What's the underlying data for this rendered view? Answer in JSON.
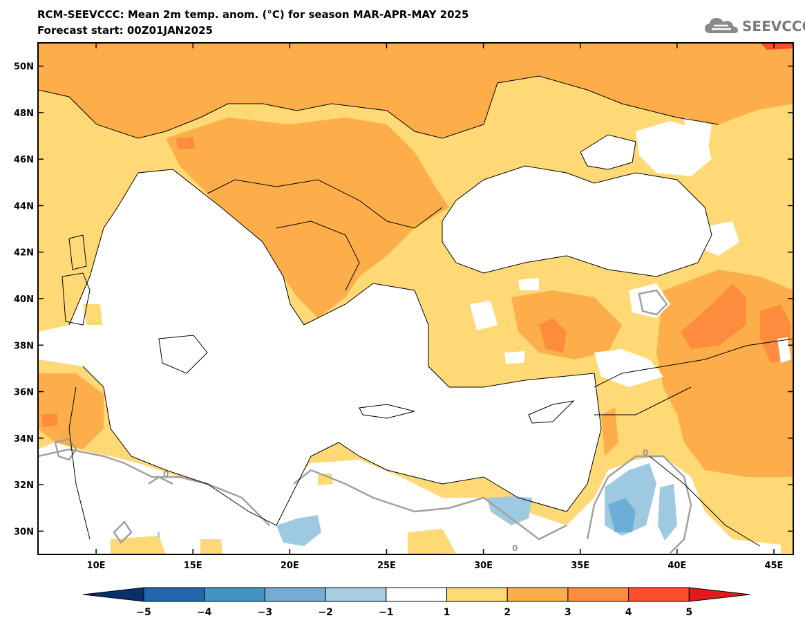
{
  "header": {
    "title": "RCM-SEEVCCC: Mean 2m temp. anom. (°C) for season MAR-APR-MAY 2025",
    "subtitle": "Forecast start: 00Z01JAN2025",
    "logo_text": "SEEVCCC",
    "logo_icon": "cloud-icon"
  },
  "map": {
    "lon_range": [
      7,
      46
    ],
    "lat_range": [
      29,
      51
    ],
    "x_ticks": [
      "10E",
      "15E",
      "20E",
      "25E",
      "30E",
      "35E",
      "40E",
      "45E"
    ],
    "y_ticks": [
      "50N",
      "48N",
      "46N",
      "44N",
      "42N",
      "40N",
      "38N",
      "36N",
      "34N",
      "32N",
      "30N"
    ],
    "contour_label": "0",
    "colors": {
      "sea": "#ffffff",
      "anom_1_2": "#fed976",
      "anom_2_3": "#fdae4b",
      "anom_3_4": "#fd8d3c",
      "anom_4_5": "#fc4e2a",
      "anom_neg1_neg2": "#9ecae1",
      "anom_neg2_neg3": "#6baed6",
      "contour_zero": "#a0a0a0",
      "coast": "#000000"
    }
  },
  "colorbar": {
    "labels": [
      "−5",
      "−4",
      "−3",
      "−2",
      "−1",
      "1",
      "2",
      "3",
      "4",
      "5"
    ],
    "colors": [
      "#08306b",
      "#2166ac",
      "#4393c3",
      "#74add1",
      "#a6cee3",
      "#ffffff",
      "#fed976",
      "#fdae4b",
      "#fd8d3c",
      "#fc4e2a",
      "#e31a1c"
    ]
  }
}
